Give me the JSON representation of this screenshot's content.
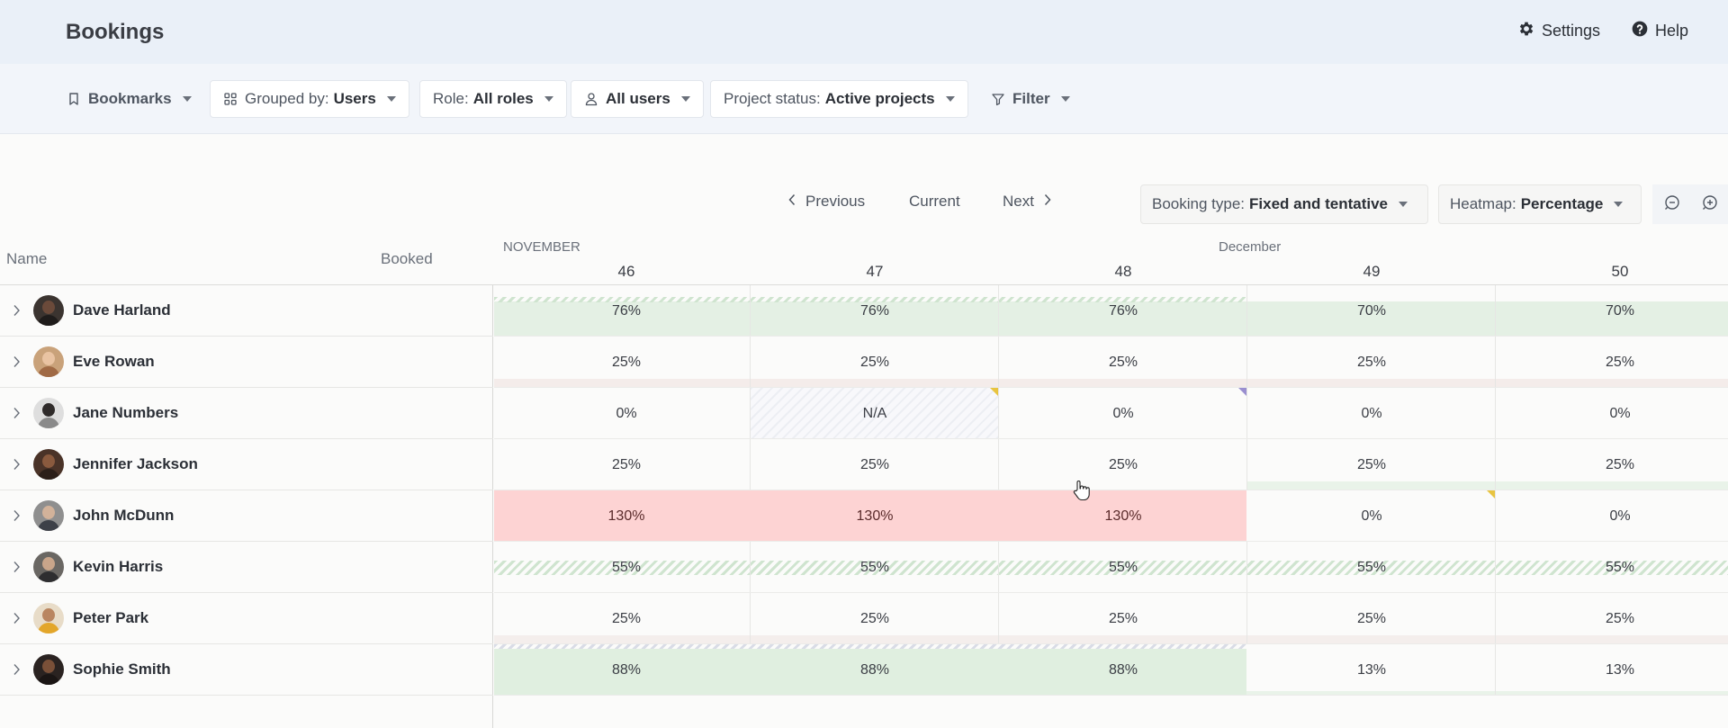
{
  "header": {
    "title": "Bookings",
    "settings_label": "Settings",
    "help_label": "Help"
  },
  "toolbar": {
    "bookmarks_label": "Bookmarks",
    "grouped_by_label": "Grouped by:",
    "grouped_by_value": "Users",
    "role_label": "Role:",
    "role_value": "All roles",
    "users_value": "All users",
    "project_status_label": "Project status:",
    "project_status_value": "Active projects",
    "filter_label": "Filter"
  },
  "navigation": {
    "previous_label": "Previous",
    "current_label": "Current",
    "next_label": "Next",
    "booking_type_label": "Booking type:",
    "booking_type_value": "Fixed and tentative",
    "heatmap_label": "Heatmap:",
    "heatmap_value": "Percentage"
  },
  "table": {
    "name_header": "Name",
    "booked_header": "Booked",
    "months": [
      "NOVEMBER",
      "December"
    ],
    "weeks": [
      "46",
      "47",
      "48",
      "49",
      "50"
    ],
    "rows": [
      {
        "name": "Dave Harland",
        "values": [
          "76%",
          "76%",
          "76%",
          "70%",
          "70%"
        ]
      },
      {
        "name": "Eve Rowan",
        "values": [
          "25%",
          "25%",
          "25%",
          "25%",
          "25%"
        ]
      },
      {
        "name": "Jane Numbers",
        "values": [
          "0%",
          "N/A",
          "0%",
          "0%",
          "0%"
        ]
      },
      {
        "name": "Jennifer Jackson",
        "values": [
          "25%",
          "25%",
          "25%",
          "25%",
          "25%"
        ]
      },
      {
        "name": "John McDunn",
        "values": [
          "130%",
          "130%",
          "130%",
          "0%",
          "0%"
        ]
      },
      {
        "name": "Kevin Harris",
        "values": [
          "55%",
          "55%",
          "55%",
          "55%",
          "55%"
        ]
      },
      {
        "name": "Peter Park",
        "values": [
          "25%",
          "25%",
          "25%",
          "25%",
          "25%"
        ]
      },
      {
        "name": "Sophie Smith",
        "values": [
          "88%",
          "88%",
          "88%",
          "13%",
          "13%"
        ]
      }
    ]
  },
  "colors": {
    "header_bg": "#eaf0f8",
    "available": "#e4f0e4",
    "overbooked": "#fdd3d3"
  }
}
